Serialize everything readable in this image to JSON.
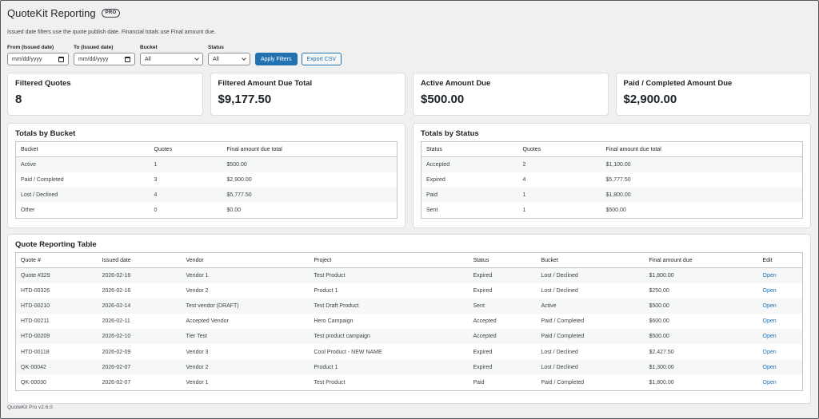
{
  "header": {
    "title": "QuoteKit Reporting",
    "badge": "PRO"
  },
  "note": "Issued date filters use the quote publish date. Financial totals use Final amount due.",
  "filters": {
    "from_label": "From (Issued date)",
    "from_value": "mm/dd/yyyy",
    "to_label": "To (Issued date)",
    "to_value": "mm/dd/yyyy",
    "bucket_label": "Bucket",
    "bucket_value": "All",
    "status_label": "Status",
    "status_value": "All",
    "apply_label": "Apply Filters",
    "export_label": "Export CSV"
  },
  "cards": [
    {
      "label": "Filtered Quotes",
      "value": "8"
    },
    {
      "label": "Filtered Amount Due Total",
      "value": "$9,177.50"
    },
    {
      "label": "Active Amount Due",
      "value": "$500.00"
    },
    {
      "label": "Paid / Completed Amount Due",
      "value": "$2,900.00"
    }
  ],
  "bucket_table": {
    "title": "Totals by Bucket",
    "headers": [
      "Bucket",
      "Quotes",
      "Final amount due total"
    ],
    "rows": [
      [
        "Active",
        "1",
        "$500.00"
      ],
      [
        "Paid / Completed",
        "3",
        "$2,900.00"
      ],
      [
        "Lost / Declined",
        "4",
        "$5,777.50"
      ],
      [
        "Other",
        "0",
        "$0.00"
      ]
    ]
  },
  "status_table": {
    "title": "Totals by Status",
    "headers": [
      "Status",
      "Quotes",
      "Final amount due total"
    ],
    "rows": [
      [
        "Accepted",
        "2",
        "$1,100.00"
      ],
      [
        "Expired",
        "4",
        "$5,777.50"
      ],
      [
        "Paid",
        "1",
        "$1,800.00"
      ],
      [
        "Sent",
        "1",
        "$500.00"
      ]
    ]
  },
  "report_table": {
    "title": "Quote Reporting Table",
    "headers": [
      "Quote #",
      "Issued date",
      "Vendor",
      "Project",
      "Status",
      "Bucket",
      "Final amount due",
      "Edit"
    ],
    "rows": [
      [
        "Quote #329",
        "2026-02-16",
        "Vendor 1",
        "Test Product",
        "Expired",
        "Lost / Declined",
        "$1,800.00",
        "Open"
      ],
      [
        "HTD-00326",
        "2026-02-16",
        "Vendor 2",
        "Product 1",
        "Expired",
        "Lost / Declined",
        "$250.00",
        "Open"
      ],
      [
        "HTD-00210",
        "2026-02-14",
        "Test vendor (DRAFT)",
        "Test Draft Product",
        "Sent",
        "Active",
        "$500.00",
        "Open"
      ],
      [
        "HTD-00211",
        "2026-02-11",
        "Accepted Vendor",
        "Hero Campaign",
        "Accepted",
        "Paid / Completed",
        "$600.00",
        "Open"
      ],
      [
        "HTD-00209",
        "2026-02-10",
        "Tier Test",
        "Test product campaign",
        "Accepted",
        "Paid / Completed",
        "$500.00",
        "Open"
      ],
      [
        "HTD-00118",
        "2026-02-09",
        "Vendor 3",
        "Cool Product - NEW NAME",
        "Expired",
        "Lost / Declined",
        "$2,427.50",
        "Open"
      ],
      [
        "QK-00042",
        "2026-02-07",
        "Vendor 2",
        "Product 1",
        "Expired",
        "Lost / Declined",
        "$1,300.00",
        "Open"
      ],
      [
        "QK-00030",
        "2026-02-07",
        "Vendor 1",
        "Test Product",
        "Paid",
        "Paid / Completed",
        "$1,800.00",
        "Open"
      ]
    ]
  },
  "footer": "QuoteKit Pro v2.6.0"
}
